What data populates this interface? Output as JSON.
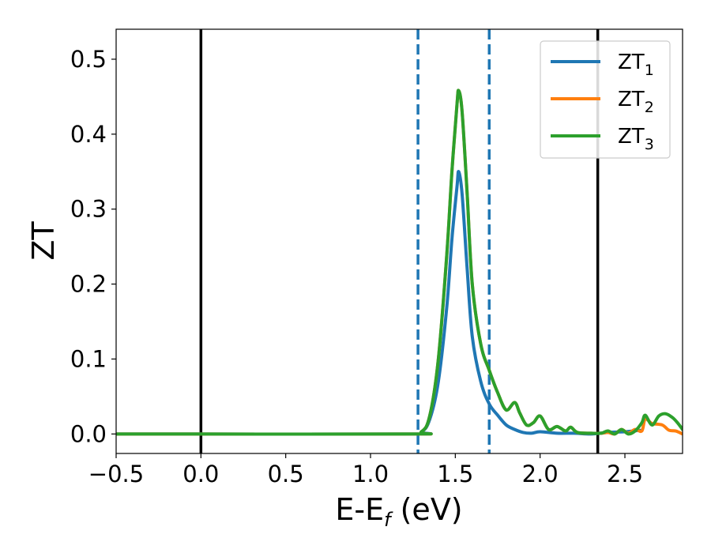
{
  "chart_data": {
    "type": "line",
    "xlabel": {
      "main": "E-E",
      "sub": "f",
      "unit": " (eV)"
    },
    "ylabel": "ZT",
    "xlim": [
      -0.5,
      2.84
    ],
    "ylim": [
      -0.026,
      0.54
    ],
    "x_ticks": [
      -0.5,
      0.0,
      0.5,
      1.0,
      1.5,
      2.0,
      2.5
    ],
    "x_tick_labels": [
      "−0.5",
      "0.0",
      "0.5",
      "1.0",
      "1.5",
      "2.0",
      "2.5"
    ],
    "y_ticks": [
      0.0,
      0.1,
      0.2,
      0.3,
      0.4,
      0.5
    ],
    "y_tick_labels": [
      "0.0",
      "0.1",
      "0.2",
      "0.3",
      "0.4",
      "0.5"
    ],
    "legend_position": "top-right",
    "grid": false,
    "vertical_lines": [
      {
        "x": 0.0,
        "style": "solid",
        "color": "#000000"
      },
      {
        "x": 2.34,
        "style": "solid",
        "color": "#000000"
      },
      {
        "x": 1.28,
        "style": "dashed",
        "color": "#1f77b4"
      },
      {
        "x": 1.7,
        "style": "dashed",
        "color": "#1f77b4"
      }
    ],
    "series": [
      {
        "name": "ZT",
        "sub": "1",
        "color": "#1f77b4",
        "x": [
          -0.5,
          1.2,
          1.3,
          1.35,
          1.4,
          1.45,
          1.48,
          1.51,
          1.52,
          1.54,
          1.57,
          1.6,
          1.65,
          1.7,
          1.75,
          1.8,
          1.85,
          1.9,
          1.95,
          2.0,
          2.1,
          2.2,
          2.3,
          2.4,
          2.5,
          2.55,
          2.6
        ],
        "y": [
          0.0,
          0.0,
          0.003,
          0.02,
          0.07,
          0.17,
          0.26,
          0.33,
          0.35,
          0.32,
          0.22,
          0.13,
          0.07,
          0.04,
          0.025,
          0.012,
          0.006,
          0.002,
          0.001,
          0.003,
          0.001,
          0.001,
          0.0,
          0.002,
          0.003,
          0.004,
          0.005
        ]
      },
      {
        "name": "ZT",
        "sub": "2",
        "color": "#ff7f0e",
        "x": [
          -0.5,
          1.2,
          1.3,
          1.35,
          1.4,
          1.45,
          1.48,
          1.51,
          1.52,
          1.54,
          1.57,
          1.6,
          1.65,
          1.7,
          1.75,
          1.8,
          1.85,
          1.88,
          1.92,
          1.96,
          2.0,
          2.05,
          2.1,
          2.15,
          2.18,
          2.22,
          2.3,
          2.36,
          2.4,
          2.44,
          2.48,
          2.52,
          2.56,
          2.6,
          2.62,
          2.66,
          2.72,
          2.76,
          2.8,
          2.84
        ],
        "y": [
          0.0,
          0.0,
          0.003,
          0.025,
          0.1,
          0.24,
          0.35,
          0.44,
          0.458,
          0.43,
          0.32,
          0.2,
          0.12,
          0.085,
          0.055,
          0.032,
          0.042,
          0.028,
          0.012,
          0.015,
          0.024,
          0.006,
          0.01,
          0.004,
          0.009,
          0.002,
          0.001,
          0.001,
          0.002,
          0.0,
          0.006,
          0.001,
          0.006,
          0.004,
          0.02,
          0.014,
          0.012,
          0.005,
          0.004,
          0.0
        ]
      },
      {
        "name": "ZT",
        "sub": "3",
        "color": "#2ca02c",
        "x": [
          -0.5,
          1.2,
          1.3,
          1.35,
          1.4,
          1.45,
          1.48,
          1.51,
          1.52,
          1.54,
          1.57,
          1.6,
          1.65,
          1.7,
          1.75,
          1.8,
          1.85,
          1.88,
          1.92,
          1.96,
          2.0,
          2.05,
          2.1,
          2.15,
          2.18,
          2.22,
          2.3,
          2.36,
          2.4,
          2.44,
          2.48,
          2.52,
          2.56,
          2.6,
          2.62,
          2.66,
          2.7,
          2.74,
          2.78,
          2.81,
          2.84
        ],
        "y": [
          0.0,
          0.0,
          0.003,
          0.025,
          0.1,
          0.24,
          0.35,
          0.44,
          0.458,
          0.43,
          0.32,
          0.2,
          0.12,
          0.085,
          0.055,
          0.032,
          0.042,
          0.028,
          0.012,
          0.015,
          0.024,
          0.006,
          0.01,
          0.004,
          0.009,
          0.002,
          0.001,
          0.001,
          0.004,
          0.0,
          0.006,
          0.0,
          0.004,
          0.015,
          0.025,
          0.012,
          0.024,
          0.027,
          0.022,
          0.015,
          0.006
        ]
      }
    ]
  }
}
